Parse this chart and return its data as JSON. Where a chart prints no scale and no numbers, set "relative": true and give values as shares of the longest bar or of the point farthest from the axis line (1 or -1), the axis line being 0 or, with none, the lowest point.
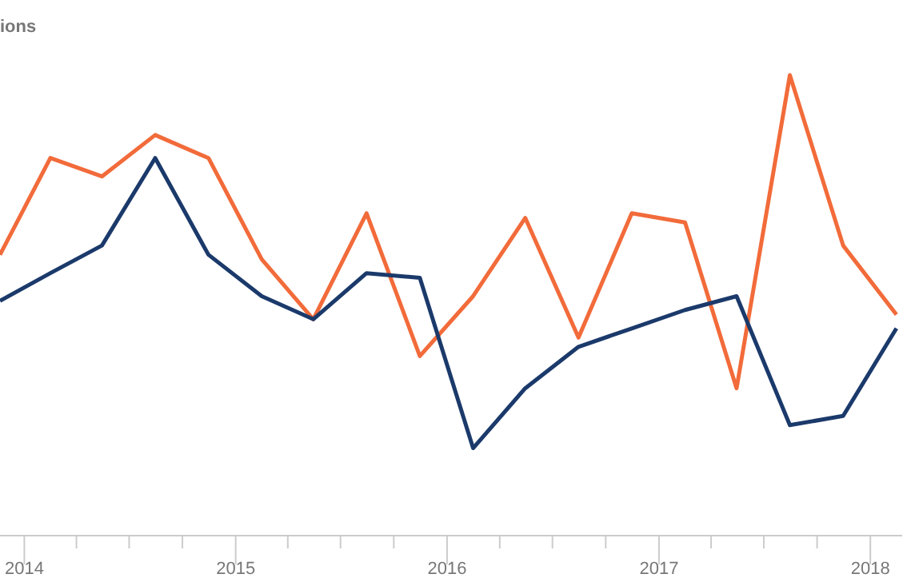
{
  "chart_data": {
    "type": "line",
    "title": "ions",
    "relative": true,
    "x": [
      "2013-11-20",
      "2014-02-15",
      "2014-05-15",
      "2014-08-15",
      "2014-11-15",
      "2015-02-15",
      "2015-05-15",
      "2015-08-15",
      "2015-11-15",
      "2016-02-15",
      "2016-05-15",
      "2016-08-15",
      "2016-11-15",
      "2017-02-15",
      "2017-05-15",
      "2017-08-15",
      "2017-11-15",
      "2018-02-15"
    ],
    "xlim": [
      "2013-11-20",
      "2018-02-25"
    ],
    "xticks": [
      {
        "value": "2014-01-01",
        "label": "2014"
      },
      {
        "value": "2014-04-01",
        "label": null
      },
      {
        "value": "2014-07-01",
        "label": null
      },
      {
        "value": "2014-10-01",
        "label": null
      },
      {
        "value": "2015-01-01",
        "label": "2015"
      },
      {
        "value": "2015-04-01",
        "label": null
      },
      {
        "value": "2015-07-01",
        "label": null
      },
      {
        "value": "2015-10-01",
        "label": null
      },
      {
        "value": "2016-01-01",
        "label": "2016"
      },
      {
        "value": "2016-04-01",
        "label": null
      },
      {
        "value": "2016-07-01",
        "label": null
      },
      {
        "value": "2016-10-01",
        "label": null
      },
      {
        "value": "2017-01-01",
        "label": "2017"
      },
      {
        "value": "2017-04-01",
        "label": null
      },
      {
        "value": "2017-07-01",
        "label": null
      },
      {
        "value": "2017-10-01",
        "label": null
      },
      {
        "value": "2018-01-01",
        "label": "2018"
      }
    ],
    "series": [
      {
        "color": "#f26b3a",
        "values": [
          0.61,
          0.82,
          0.78,
          0.87,
          0.82,
          0.6,
          0.47,
          0.7,
          0.39,
          0.52,
          0.69,
          0.43,
          0.7,
          0.68,
          0.32,
          1.0,
          0.63,
          0.48
        ]
      },
      {
        "color": "#1b3a6b",
        "values": [
          0.51,
          0.57,
          0.63,
          0.82,
          0.61,
          0.52,
          0.47,
          0.57,
          0.56,
          0.19,
          0.32,
          0.41,
          0.45,
          0.49,
          0.52,
          0.24,
          0.26,
          0.45
        ]
      }
    ],
    "grid": false,
    "marker": "none",
    "line_style": "solid"
  }
}
